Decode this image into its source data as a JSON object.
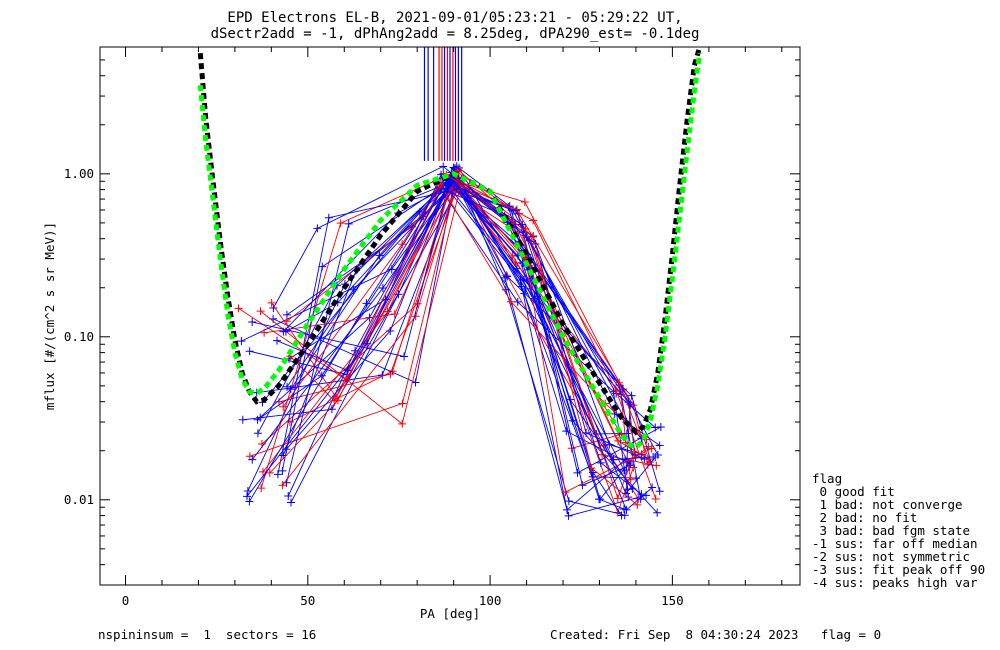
{
  "chart_data": {
    "type": "line",
    "title": "EPD Electrons EL-B, 2021-09-01/05:23:21 - 05:29:22 UT,",
    "subtitle": "dSectr2add = -1, dPhAng2add = 8.25deg, dPA290_est=  -0.1deg",
    "xlabel": "PA [deg]",
    "ylabel": "mflux [#/(cm^2 s sr MeV)]",
    "xlim": [
      -7,
      185
    ],
    "ylim": [
      0.003,
      6.0
    ],
    "yscale": "log",
    "xticks": [
      "0",
      "50",
      "100",
      "150"
    ],
    "xtick_values": [
      0,
      50,
      100,
      150
    ],
    "yticks": [
      "0.01",
      "0.10",
      "1.00"
    ],
    "ytick_values": [
      0.01,
      0.1,
      1.0
    ],
    "colors": {
      "red": "#ff0000",
      "blue": "#0000ff",
      "black": "#000000",
      "green": "#00ff00"
    },
    "fit_curves": [
      {
        "color": "#000000",
        "x": [
          20.5,
          22,
          24,
          26,
          28,
          30,
          32,
          34,
          36,
          38,
          42,
          50,
          60,
          70,
          80,
          90,
          100,
          110,
          120,
          130,
          136,
          140,
          142,
          144,
          146,
          148,
          150,
          152,
          154,
          156,
          157.5
        ],
        "y": [
          5.5,
          2.2,
          0.9,
          0.38,
          0.18,
          0.095,
          0.06,
          0.046,
          0.04,
          0.041,
          0.05,
          0.09,
          0.2,
          0.42,
          0.78,
          1.0,
          0.78,
          0.32,
          0.12,
          0.052,
          0.032,
          0.026,
          0.028,
          0.036,
          0.06,
          0.13,
          0.32,
          0.85,
          2.1,
          4.6,
          6.0
        ]
      },
      {
        "color": "#00ff00",
        "x": [
          20.5,
          22,
          24,
          26,
          28,
          30,
          32,
          34,
          36,
          38,
          42,
          50,
          60,
          70,
          80,
          90,
          100,
          110,
          120,
          130,
          136,
          138,
          140,
          142,
          144,
          146,
          148,
          150,
          152,
          154,
          156,
          157.5
        ],
        "y": [
          3.5,
          1.6,
          0.7,
          0.3,
          0.14,
          0.08,
          0.055,
          0.046,
          0.045,
          0.048,
          0.062,
          0.12,
          0.26,
          0.52,
          0.85,
          1.0,
          0.78,
          0.28,
          0.1,
          0.042,
          0.025,
          0.022,
          0.021,
          0.023,
          0.031,
          0.05,
          0.1,
          0.23,
          0.55,
          1.35,
          3.2,
          5.5
        ]
      }
    ],
    "spikes": [
      {
        "x": 82,
        "color": "#0000ff"
      },
      {
        "x": 83,
        "color": "#0000ff"
      },
      {
        "x": 84.5,
        "color": "#0000ff"
      },
      {
        "x": 86,
        "color": "#ff0000"
      },
      {
        "x": 86.8,
        "color": "#ff0000"
      },
      {
        "x": 87.5,
        "color": "#0000ff"
      },
      {
        "x": 88.3,
        "color": "#ff0000"
      },
      {
        "x": 89,
        "color": "#0000ff"
      },
      {
        "x": 89.8,
        "color": "#ff0000"
      },
      {
        "x": 90.5,
        "color": "#0000ff"
      },
      {
        "x": 91.3,
        "color": "#0000ff"
      },
      {
        "x": 92.2,
        "color": "#0000ff"
      }
    ],
    "spike_range": [
      1.2,
      6.0
    ]
  },
  "legend": {
    "title": "flag",
    "items": [
      " 0 good fit",
      " 1 bad: not converge",
      " 2 bad: no fit",
      " 3 bad: bad fgm state",
      "-1 sus: far off median",
      "-2 sus: not symmetric",
      "-3 sus: fit peak off 90",
      "-4 sus: peaks high var"
    ]
  },
  "footer": {
    "left": "nspininsum =  1  sectors = 16",
    "right": "Created: Fri Sep  8 04:30:24 2023   flag = 0"
  }
}
